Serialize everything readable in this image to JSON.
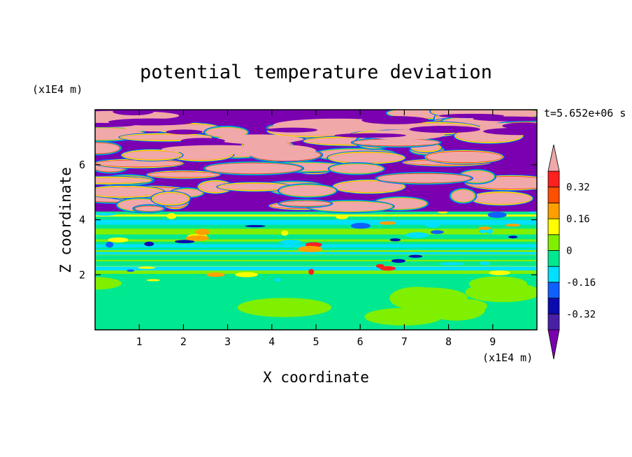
{
  "chart_data": {
    "type": "heatmap",
    "title": "potential temperature deviation",
    "xlabel": "X coordinate",
    "ylabel": "Z coordinate",
    "x_unit": "(x1E4 m)",
    "y_unit": "(x1E4 m)",
    "time_label": "t=5.652e+06 s",
    "xlim": [
      0,
      10
    ],
    "ylim": [
      0,
      8
    ],
    "x_ticks": [
      "1",
      "2",
      "3",
      "4",
      "5",
      "6",
      "7",
      "8",
      "9"
    ],
    "y_ticks": [
      "2",
      "4",
      "6"
    ],
    "colorbar": {
      "levels": [
        -0.4,
        -0.32,
        -0.24,
        -0.16,
        -0.08,
        0,
        0.08,
        0.16,
        0.24,
        0.32,
        0.4
      ],
      "tick_labels": [
        "0.32",
        "0.16",
        "0",
        "-0.16",
        "-0.32"
      ],
      "colors": [
        "#7a00b0",
        "#4a1fa8",
        "#0a0ab0",
        "#1060ff",
        "#00e0ff",
        "#00e890",
        "#80f000",
        "#ffff00",
        "#ffa000",
        "#ff5000",
        "#ff2020",
        "#f0a8a8"
      ],
      "extend": "both"
    }
  }
}
